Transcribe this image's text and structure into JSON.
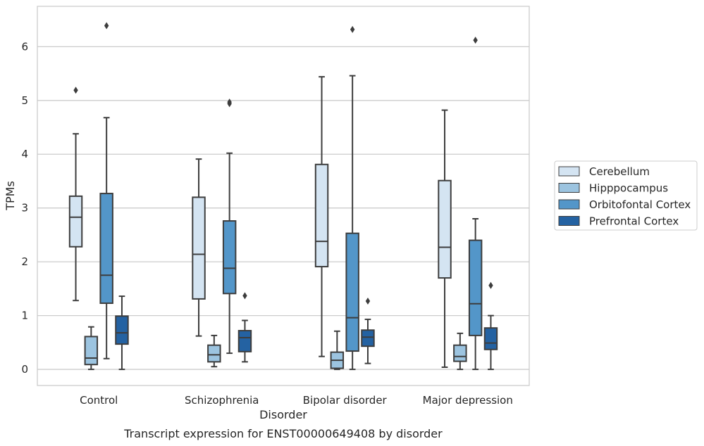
{
  "caption": "Transcript expression for ENST00000649408 by disorder",
  "chart_data": {
    "type": "boxplot",
    "xlabel": "Disorder",
    "ylabel": "TPMs",
    "ylim": [
      -0.3,
      6.75
    ],
    "yticks": [
      0,
      1,
      2,
      3,
      4,
      5,
      6
    ],
    "grid": "horizontal",
    "legend_position": "right",
    "categories": [
      "Control",
      "Schizophrenia",
      "Bipolar disorder",
      "Major depression"
    ],
    "series": [
      {
        "name": "Cerebellum",
        "color": "#d4e4f2",
        "boxes": [
          {
            "whisker_low": 1.28,
            "q1": 2.28,
            "median": 2.83,
            "q3": 3.22,
            "whisker_high": 4.38,
            "outliers": [
              5.19
            ]
          },
          {
            "whisker_low": 0.62,
            "q1": 1.31,
            "median": 2.14,
            "q3": 3.2,
            "whisker_high": 3.91,
            "outliers": []
          },
          {
            "whisker_low": 0.24,
            "q1": 1.91,
            "median": 2.38,
            "q3": 3.81,
            "whisker_high": 5.44,
            "outliers": []
          },
          {
            "whisker_low": 0.04,
            "q1": 1.7,
            "median": 2.27,
            "q3": 3.51,
            "whisker_high": 4.82,
            "outliers": []
          }
        ]
      },
      {
        "name": "Hipppocampus",
        "color": "#9cc4e0",
        "boxes": [
          {
            "whisker_low": 0.0,
            "q1": 0.09,
            "median": 0.21,
            "q3": 0.61,
            "whisker_high": 0.79,
            "outliers": []
          },
          {
            "whisker_low": 0.05,
            "q1": 0.14,
            "median": 0.27,
            "q3": 0.45,
            "whisker_high": 0.63,
            "outliers": []
          },
          {
            "whisker_low": 0.0,
            "q1": 0.02,
            "median": 0.17,
            "q3": 0.32,
            "whisker_high": 0.71,
            "outliers": []
          },
          {
            "whisker_low": 0.0,
            "q1": 0.15,
            "median": 0.24,
            "q3": 0.45,
            "whisker_high": 0.67,
            "outliers": []
          }
        ]
      },
      {
        "name": "Orbitofontal Cortex",
        "color": "#5396c9",
        "boxes": [
          {
            "whisker_low": 0.2,
            "q1": 1.23,
            "median": 1.75,
            "q3": 3.27,
            "whisker_high": 4.68,
            "outliers": [
              6.39
            ]
          },
          {
            "whisker_low": 0.3,
            "q1": 1.41,
            "median": 1.88,
            "q3": 2.76,
            "whisker_high": 4.02,
            "outliers": [
              4.94,
              4.97
            ]
          },
          {
            "whisker_low": 0.0,
            "q1": 0.34,
            "median": 0.96,
            "q3": 2.53,
            "whisker_high": 5.46,
            "outliers": [
              6.32
            ]
          },
          {
            "whisker_low": 0.0,
            "q1": 0.63,
            "median": 1.22,
            "q3": 2.4,
            "whisker_high": 2.8,
            "outliers": [
              6.12
            ]
          }
        ]
      },
      {
        "name": "Prefrontal Cortex",
        "color": "#2462a2",
        "boxes": [
          {
            "whisker_low": 0.0,
            "q1": 0.47,
            "median": 0.68,
            "q3": 0.99,
            "whisker_high": 1.36,
            "outliers": []
          },
          {
            "whisker_low": 0.14,
            "q1": 0.33,
            "median": 0.59,
            "q3": 0.72,
            "whisker_high": 0.91,
            "outliers": [
              1.37
            ]
          },
          {
            "whisker_low": 0.11,
            "q1": 0.43,
            "median": 0.6,
            "q3": 0.73,
            "whisker_high": 0.93,
            "outliers": [
              1.27
            ]
          },
          {
            "whisker_low": 0.0,
            "q1": 0.37,
            "median": 0.49,
            "q3": 0.77,
            "whisker_high": 1.0,
            "outliers": [
              1.56
            ]
          }
        ]
      }
    ]
  }
}
